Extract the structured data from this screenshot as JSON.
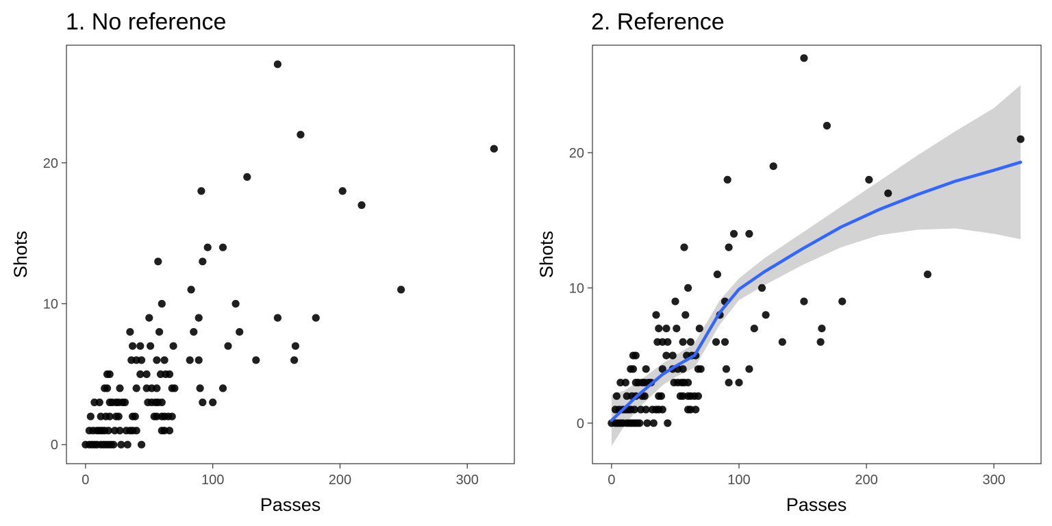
{
  "chart_data": [
    {
      "type": "scatter",
      "title": "1. No reference",
      "xlabel": "Passes",
      "ylabel": "Shots",
      "xlim": [
        -15,
        337
      ],
      "ylim": [
        -1.35,
        28.35
      ],
      "xticks": [
        0,
        100,
        200,
        300
      ],
      "yticks": [
        0,
        10,
        20
      ],
      "grid": false,
      "point_color": "#000000",
      "points": [
        [
          0,
          0
        ],
        [
          3,
          0
        ],
        [
          5,
          0
        ],
        [
          7,
          0
        ],
        [
          9,
          0
        ],
        [
          12,
          0
        ],
        [
          14,
          0
        ],
        [
          16,
          0
        ],
        [
          18,
          0
        ],
        [
          20,
          0
        ],
        [
          22,
          0
        ],
        [
          28,
          0
        ],
        [
          33,
          0
        ],
        [
          44,
          0
        ],
        [
          3,
          1
        ],
        [
          6,
          1
        ],
        [
          9,
          1
        ],
        [
          11,
          1
        ],
        [
          13,
          1
        ],
        [
          15,
          1
        ],
        [
          18,
          1
        ],
        [
          23,
          1
        ],
        [
          27,
          1
        ],
        [
          32,
          1
        ],
        [
          35,
          1
        ],
        [
          37,
          1
        ],
        [
          40,
          1
        ],
        [
          60,
          1
        ],
        [
          62,
          1
        ],
        [
          66,
          1
        ],
        [
          4,
          2
        ],
        [
          12,
          2
        ],
        [
          16,
          2
        ],
        [
          19,
          2
        ],
        [
          24,
          2
        ],
        [
          26,
          2
        ],
        [
          37,
          2
        ],
        [
          39,
          2
        ],
        [
          54,
          2
        ],
        [
          56,
          2
        ],
        [
          60,
          2
        ],
        [
          62,
          2
        ],
        [
          65,
          2
        ],
        [
          68,
          2
        ],
        [
          7,
          3
        ],
        [
          11,
          3
        ],
        [
          19,
          3
        ],
        [
          21,
          3
        ],
        [
          24,
          3
        ],
        [
          26,
          3
        ],
        [
          29,
          3
        ],
        [
          31,
          3
        ],
        [
          49,
          3
        ],
        [
          52,
          3
        ],
        [
          55,
          3
        ],
        [
          57,
          3
        ],
        [
          60,
          3
        ],
        [
          100,
          3
        ],
        [
          92,
          3
        ],
        [
          15,
          4
        ],
        [
          17,
          4
        ],
        [
          27,
          4
        ],
        [
          40,
          4
        ],
        [
          48,
          4
        ],
        [
          52,
          4
        ],
        [
          56,
          4
        ],
        [
          68,
          4
        ],
        [
          70,
          4
        ],
        [
          90,
          4
        ],
        [
          108,
          4
        ],
        [
          17,
          5
        ],
        [
          19,
          5
        ],
        [
          43,
          5
        ],
        [
          48,
          5
        ],
        [
          59,
          5
        ],
        [
          63,
          5
        ],
        [
          66,
          5
        ],
        [
          36,
          6
        ],
        [
          40,
          6
        ],
        [
          44,
          6
        ],
        [
          56,
          6
        ],
        [
          62,
          6
        ],
        [
          82,
          6
        ],
        [
          89,
          6
        ],
        [
          164,
          6
        ],
        [
          134,
          6
        ],
        [
          37,
          7
        ],
        [
          43,
          7
        ],
        [
          51,
          7
        ],
        [
          69,
          7
        ],
        [
          112,
          7
        ],
        [
          165,
          7
        ],
        [
          35,
          8
        ],
        [
          58,
          8
        ],
        [
          85,
          8
        ],
        [
          121,
          8
        ],
        [
          50,
          9
        ],
        [
          89,
          9
        ],
        [
          151,
          9
        ],
        [
          181,
          9
        ],
        [
          60,
          10
        ],
        [
          118,
          10
        ],
        [
          83,
          11
        ],
        [
          248,
          11
        ],
        [
          57,
          13
        ],
        [
          92,
          13
        ],
        [
          96,
          14
        ],
        [
          108,
          14
        ],
        [
          217,
          17
        ],
        [
          91,
          18
        ],
        [
          202,
          18
        ],
        [
          127,
          19
        ],
        [
          321,
          21
        ],
        [
          169,
          22
        ],
        [
          151,
          27
        ]
      ]
    },
    {
      "type": "scatter",
      "title": "2. Reference",
      "xlabel": "Passes",
      "ylabel": "Shots",
      "xlim": [
        -15,
        337
      ],
      "ylim": [
        -3.0,
        27.95
      ],
      "xticks": [
        0,
        100,
        200,
        300
      ],
      "yticks": [
        0,
        10,
        20
      ],
      "grid": false,
      "point_color": "#000000",
      "smooth_color": "#3366ff",
      "band_color": "#d3d3d3",
      "points": [
        [
          0,
          0
        ],
        [
          3,
          0
        ],
        [
          5,
          0
        ],
        [
          7,
          0
        ],
        [
          9,
          0
        ],
        [
          12,
          0
        ],
        [
          14,
          0
        ],
        [
          16,
          0
        ],
        [
          18,
          0
        ],
        [
          20,
          0
        ],
        [
          22,
          0
        ],
        [
          28,
          0
        ],
        [
          33,
          0
        ],
        [
          44,
          0
        ],
        [
          3,
          1
        ],
        [
          6,
          1
        ],
        [
          9,
          1
        ],
        [
          11,
          1
        ],
        [
          13,
          1
        ],
        [
          15,
          1
        ],
        [
          18,
          1
        ],
        [
          23,
          1
        ],
        [
          27,
          1
        ],
        [
          32,
          1
        ],
        [
          35,
          1
        ],
        [
          37,
          1
        ],
        [
          40,
          1
        ],
        [
          60,
          1
        ],
        [
          62,
          1
        ],
        [
          66,
          1
        ],
        [
          4,
          2
        ],
        [
          12,
          2
        ],
        [
          16,
          2
        ],
        [
          19,
          2
        ],
        [
          24,
          2
        ],
        [
          26,
          2
        ],
        [
          37,
          2
        ],
        [
          39,
          2
        ],
        [
          54,
          2
        ],
        [
          56,
          2
        ],
        [
          60,
          2
        ],
        [
          62,
          2
        ],
        [
          65,
          2
        ],
        [
          68,
          2
        ],
        [
          7,
          3
        ],
        [
          11,
          3
        ],
        [
          19,
          3
        ],
        [
          21,
          3
        ],
        [
          24,
          3
        ],
        [
          26,
          3
        ],
        [
          29,
          3
        ],
        [
          31,
          3
        ],
        [
          49,
          3
        ],
        [
          52,
          3
        ],
        [
          55,
          3
        ],
        [
          57,
          3
        ],
        [
          60,
          3
        ],
        [
          100,
          3
        ],
        [
          92,
          3
        ],
        [
          15,
          4
        ],
        [
          17,
          4
        ],
        [
          27,
          4
        ],
        [
          40,
          4
        ],
        [
          48,
          4
        ],
        [
          52,
          4
        ],
        [
          56,
          4
        ],
        [
          68,
          4
        ],
        [
          70,
          4
        ],
        [
          90,
          4
        ],
        [
          108,
          4
        ],
        [
          17,
          5
        ],
        [
          19,
          5
        ],
        [
          43,
          5
        ],
        [
          48,
          5
        ],
        [
          59,
          5
        ],
        [
          63,
          5
        ],
        [
          66,
          5
        ],
        [
          36,
          6
        ],
        [
          40,
          6
        ],
        [
          44,
          6
        ],
        [
          56,
          6
        ],
        [
          62,
          6
        ],
        [
          82,
          6
        ],
        [
          89,
          6
        ],
        [
          164,
          6
        ],
        [
          134,
          6
        ],
        [
          37,
          7
        ],
        [
          43,
          7
        ],
        [
          51,
          7
        ],
        [
          69,
          7
        ],
        [
          112,
          7
        ],
        [
          165,
          7
        ],
        [
          35,
          8
        ],
        [
          58,
          8
        ],
        [
          85,
          8
        ],
        [
          121,
          8
        ],
        [
          50,
          9
        ],
        [
          89,
          9
        ],
        [
          151,
          9
        ],
        [
          181,
          9
        ],
        [
          60,
          10
        ],
        [
          118,
          10
        ],
        [
          83,
          11
        ],
        [
          248,
          11
        ],
        [
          57,
          13
        ],
        [
          92,
          13
        ],
        [
          96,
          14
        ],
        [
          108,
          14
        ],
        [
          217,
          17
        ],
        [
          91,
          18
        ],
        [
          202,
          18
        ],
        [
          127,
          19
        ],
        [
          321,
          21
        ],
        [
          169,
          22
        ],
        [
          151,
          27
        ]
      ],
      "smooth": [
        [
          0,
          0.2
        ],
        [
          10,
          1.1
        ],
        [
          20,
          2.0
        ],
        [
          30,
          2.8
        ],
        [
          40,
          3.6
        ],
        [
          50,
          4.2
        ],
        [
          65,
          5.0
        ],
        [
          75,
          6.6
        ],
        [
          85,
          8.2
        ],
        [
          100,
          9.9
        ],
        [
          120,
          11.2
        ],
        [
          150,
          12.9
        ],
        [
          180,
          14.5
        ],
        [
          210,
          15.8
        ],
        [
          240,
          16.9
        ],
        [
          270,
          17.9
        ],
        [
          300,
          18.7
        ],
        [
          321,
          19.3
        ]
      ],
      "band_upper": [
        [
          0,
          2.1
        ],
        [
          10,
          2.4
        ],
        [
          20,
          3.0
        ],
        [
          30,
          3.7
        ],
        [
          40,
          4.4
        ],
        [
          50,
          5.0
        ],
        [
          65,
          5.9
        ],
        [
          75,
          7.5
        ],
        [
          85,
          9.1
        ],
        [
          100,
          10.7
        ],
        [
          120,
          12.2
        ],
        [
          150,
          14.1
        ],
        [
          180,
          16.0
        ],
        [
          210,
          17.9
        ],
        [
          240,
          19.8
        ],
        [
          270,
          21.6
        ],
        [
          300,
          23.3
        ],
        [
          321,
          25.0
        ]
      ],
      "band_lower": [
        [
          0,
          -1.7
        ],
        [
          10,
          -0.2
        ],
        [
          20,
          1.0
        ],
        [
          30,
          1.9
        ],
        [
          40,
          2.8
        ],
        [
          50,
          3.4
        ],
        [
          65,
          4.1
        ],
        [
          75,
          5.7
        ],
        [
          85,
          7.3
        ],
        [
          100,
          9.1
        ],
        [
          120,
          10.2
        ],
        [
          150,
          11.7
        ],
        [
          180,
          13.0
        ],
        [
          210,
          13.9
        ],
        [
          240,
          14.3
        ],
        [
          270,
          14.4
        ],
        [
          300,
          14.0
        ],
        [
          321,
          13.6
        ]
      ]
    }
  ]
}
